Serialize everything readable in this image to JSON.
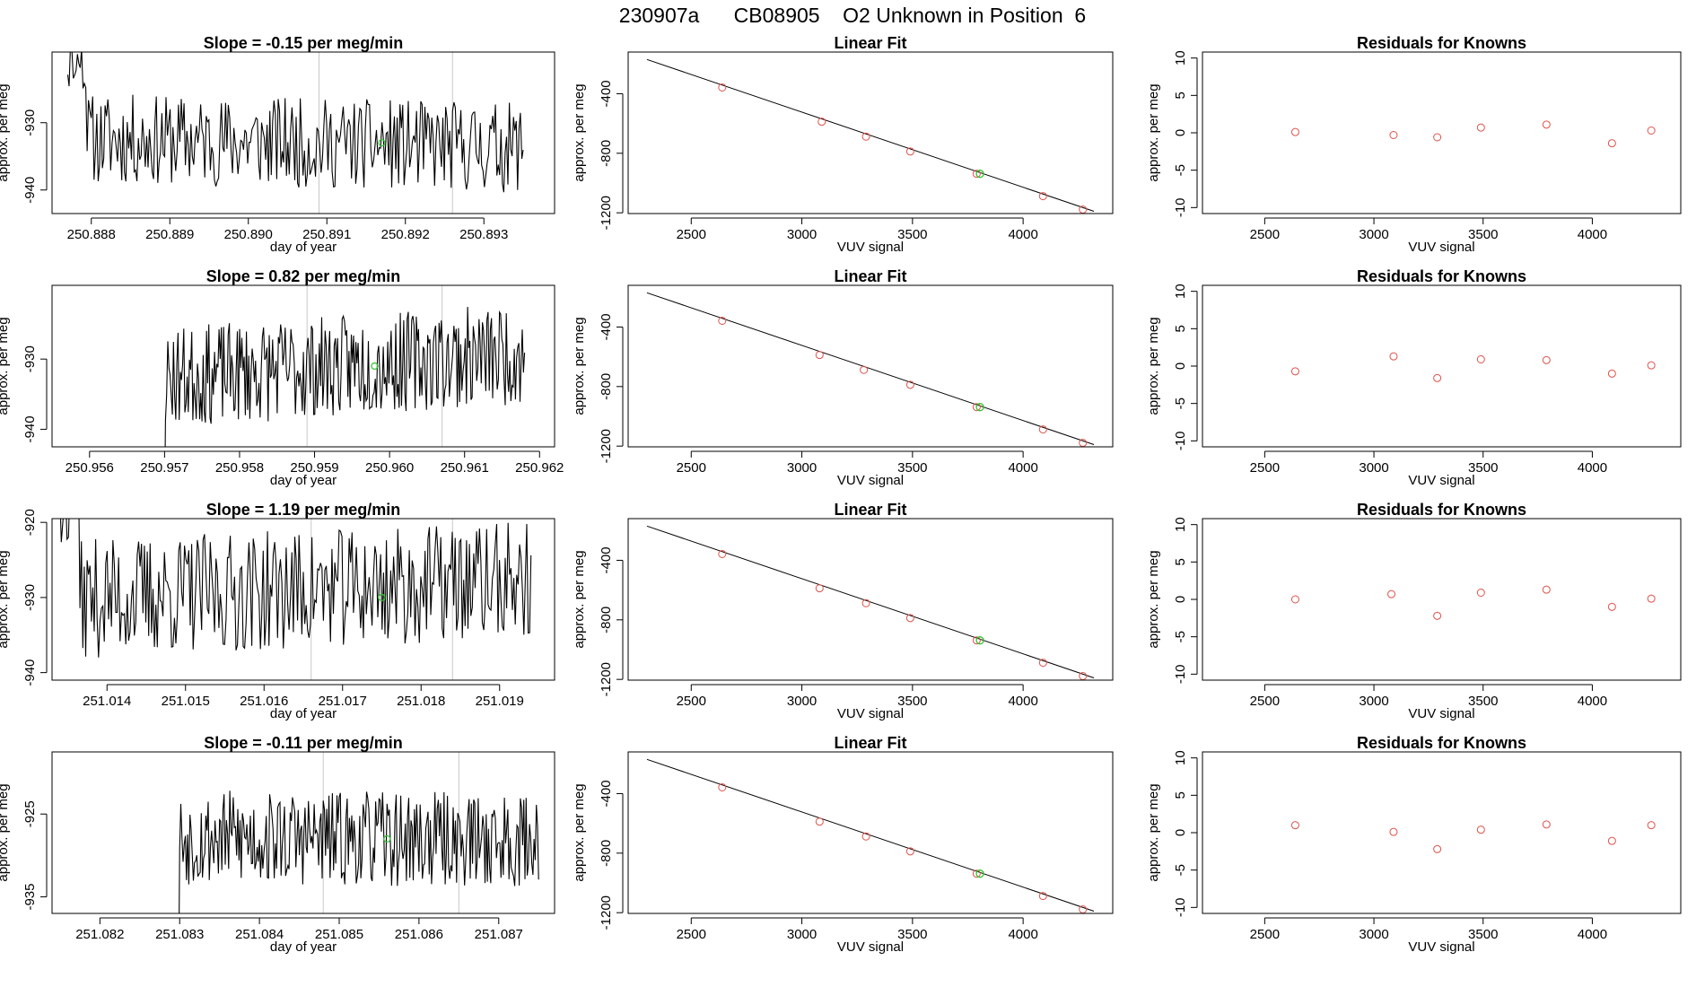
{
  "page_title": "230907a      CB08905    O2 Unknown in Position  6",
  "colors": {
    "line": "#000000",
    "known_point": "#e0514a",
    "unknown_point": "#2ec42e",
    "marker_line": "#c8c8c8",
    "frame": "#000000"
  },
  "chart_data": [
    {
      "type": "line",
      "panel": "time-series",
      "row": 1,
      "title": "Slope =  -0.15  per meg/min",
      "xlabel": "day of year",
      "ylabel": "approx. per meg",
      "xlim": [
        250.8875,
        250.8939
      ],
      "ylim": [
        -943.5,
        -919.5
      ],
      "xticks": [
        "250.888",
        "250.889",
        "250.890",
        "250.891",
        "250.892",
        "250.893"
      ],
      "yticks": [
        "-940",
        "-930"
      ],
      "series_start": 250.8877,
      "series_end": 250.8935,
      "mean": -933,
      "noise": 4.2,
      "trend": -0.35,
      "seed": 11,
      "start_level": -921,
      "vertical_markers": [
        250.8909,
        250.8926
      ],
      "unknown_point": {
        "x": 250.8917,
        "y": -933
      }
    },
    {
      "type": "scatter",
      "panel": "linear-fit",
      "row": 1,
      "title": "Linear Fit",
      "xlabel": "VUV signal",
      "ylabel": "approx. per meg",
      "xlim": [
        2215,
        4405
      ],
      "ylim": [
        -1205,
        -120
      ],
      "xticks": [
        "2500",
        "3000",
        "3500",
        "4000"
      ],
      "yticks": [
        "-1200",
        "-800",
        "-400"
      ],
      "fit_line": {
        "x": [
          2300,
          4320
        ],
        "y": [
          -170,
          -1190
        ]
      },
      "knowns": {
        "x": [
          2640,
          3090,
          3290,
          3490,
          3790,
          4090,
          4270
        ],
        "y": [
          -358,
          -588,
          -688,
          -788,
          -938,
          -1088,
          -1178
        ]
      },
      "unknown": {
        "x": 3805,
        "y": -938
      }
    },
    {
      "type": "scatter",
      "panel": "residuals",
      "row": 1,
      "title": "Residuals for Knowns",
      "xlabel": "VUV signal",
      "ylabel": "approx. per meg",
      "xlim": [
        2215,
        4405
      ],
      "ylim": [
        -10.8,
        10.8
      ],
      "xticks": [
        "2500",
        "3000",
        "3500",
        "4000"
      ],
      "yticks": [
        "-10",
        "-5",
        "0",
        "5",
        "10"
      ],
      "points": {
        "x": [
          2640,
          3090,
          3290,
          3490,
          3790,
          4090,
          4270
        ],
        "y": [
          0.1,
          -0.3,
          -0.6,
          0.7,
          1.1,
          -1.4,
          0.3
        ]
      }
    },
    {
      "type": "line",
      "panel": "time-series",
      "row": 2,
      "title": "Slope =  0.82  per meg/min",
      "xlabel": "day of year",
      "ylabel": "approx. per meg",
      "xlim": [
        250.9555,
        250.9622
      ],
      "ylim": [
        -942.5,
        -919.5
      ],
      "xticks": [
        "250.956",
        "250.957",
        "250.958",
        "250.959",
        "250.960",
        "250.961",
        "250.962"
      ],
      "yticks": [
        "-940",
        "-930"
      ],
      "series_start": 250.9568,
      "series_end": 250.9618,
      "mean": -931,
      "noise": 4.5,
      "trend": 0.9,
      "seed": 23,
      "start_level": -952,
      "vertical_markers": [
        250.9589,
        250.9607
      ],
      "unknown_point": {
        "x": 250.9598,
        "y": -931
      }
    },
    {
      "type": "scatter",
      "panel": "linear-fit",
      "row": 2,
      "title": "Linear Fit",
      "xlabel": "VUV signal",
      "ylabel": "approx. per meg",
      "xlim": [
        2215,
        4405
      ],
      "ylim": [
        -1205,
        -120
      ],
      "xticks": [
        "2500",
        "3000",
        "3500",
        "4000"
      ],
      "yticks": [
        "-1200",
        "-800",
        "-400"
      ],
      "fit_line": {
        "x": [
          2300,
          4320
        ],
        "y": [
          -170,
          -1190
        ]
      },
      "knowns": {
        "x": [
          2640,
          3080,
          3280,
          3490,
          3790,
          4090,
          4270
        ],
        "y": [
          -358,
          -588,
          -688,
          -788,
          -938,
          -1088,
          -1178
        ]
      },
      "unknown": {
        "x": 3805,
        "y": -938
      }
    },
    {
      "type": "scatter",
      "panel": "residuals",
      "row": 2,
      "title": "Residuals for Knowns",
      "xlabel": "VUV signal",
      "ylabel": "approx. per meg",
      "xlim": [
        2215,
        4405
      ],
      "ylim": [
        -10.8,
        10.8
      ],
      "xticks": [
        "2500",
        "3000",
        "3500",
        "4000"
      ],
      "yticks": [
        "-10",
        "-5",
        "0",
        "5",
        "10"
      ],
      "points": {
        "x": [
          2640,
          3090,
          3290,
          3490,
          3790,
          4090,
          4270
        ],
        "y": [
          -0.7,
          1.3,
          -1.6,
          0.9,
          0.8,
          -1.0,
          0.1
        ]
      }
    },
    {
      "type": "line",
      "panel": "time-series",
      "row": 3,
      "title": "Slope =  1.19  per meg/min",
      "xlabel": "day of year",
      "ylabel": "approx. per meg",
      "xlim": [
        251.0133,
        251.0197
      ],
      "ylim": [
        -941,
        -919.5
      ],
      "xticks": [
        "251.014",
        "251.015",
        "251.016",
        "251.017",
        "251.018",
        "251.019"
      ],
      "yticks": [
        "-940",
        "-930",
        "-920"
      ],
      "series_start": 251.0134,
      "series_end": 251.0194,
      "mean": -929,
      "noise": 5.0,
      "trend": 0.6,
      "seed": 37,
      "start_level": -918,
      "vertical_markers": [
        251.0166,
        251.0184
      ],
      "unknown_point": {
        "x": 251.0175,
        "y": -930
      }
    },
    {
      "type": "scatter",
      "panel": "linear-fit",
      "row": 3,
      "title": "Linear Fit",
      "xlabel": "VUV signal",
      "ylabel": "approx. per meg",
      "xlim": [
        2215,
        4405
      ],
      "ylim": [
        -1205,
        -120
      ],
      "xticks": [
        "2500",
        "3000",
        "3500",
        "4000"
      ],
      "yticks": [
        "-1200",
        "-800",
        "-400"
      ],
      "fit_line": {
        "x": [
          2300,
          4320
        ],
        "y": [
          -170,
          -1190
        ]
      },
      "knowns": {
        "x": [
          2640,
          3080,
          3290,
          3490,
          3790,
          4090,
          4270
        ],
        "y": [
          -358,
          -588,
          -688,
          -788,
          -938,
          -1088,
          -1178
        ]
      },
      "unknown": {
        "x": 3805,
        "y": -938
      }
    },
    {
      "type": "scatter",
      "panel": "residuals",
      "row": 3,
      "title": "Residuals for Knowns",
      "xlabel": "VUV signal",
      "ylabel": "approx. per meg",
      "xlim": [
        2215,
        4405
      ],
      "ylim": [
        -10.8,
        10.8
      ],
      "xticks": [
        "2500",
        "3000",
        "3500",
        "4000"
      ],
      "yticks": [
        "-10",
        "-5",
        "0",
        "5",
        "10"
      ],
      "points": {
        "x": [
          2640,
          3080,
          3290,
          3490,
          3790,
          4090,
          4270
        ],
        "y": [
          0.0,
          0.7,
          -2.2,
          0.9,
          1.3,
          -1.0,
          0.1
        ]
      }
    },
    {
      "type": "line",
      "panel": "time-series",
      "row": 4,
      "title": "Slope =  -0.11  per meg/min",
      "xlabel": "day of year",
      "ylabel": "approx. per meg",
      "xlim": [
        251.0814,
        251.0877
      ],
      "ylim": [
        -937,
        -917.5
      ],
      "xticks": [
        "251.082",
        "251.083",
        "251.084",
        "251.085",
        "251.086",
        "251.087"
      ],
      "yticks": [
        "-935",
        "-925"
      ],
      "series_start": 251.0828,
      "series_end": 251.0875,
      "mean": -928,
      "noise": 3.6,
      "trend": -0.1,
      "seed": 53,
      "start_level": -945,
      "vertical_markers": [
        251.0848,
        251.0865
      ],
      "unknown_point": {
        "x": 251.0856,
        "y": -928
      }
    },
    {
      "type": "scatter",
      "panel": "linear-fit",
      "row": 4,
      "title": "Linear Fit",
      "xlabel": "VUV signal",
      "ylabel": "approx. per meg",
      "xlim": [
        2215,
        4405
      ],
      "ylim": [
        -1205,
        -120
      ],
      "xticks": [
        "2500",
        "3000",
        "3500",
        "4000"
      ],
      "yticks": [
        "-1200",
        "-800",
        "-400"
      ],
      "fit_line": {
        "x": [
          2300,
          4320
        ],
        "y": [
          -170,
          -1190
        ]
      },
      "knowns": {
        "x": [
          2640,
          3080,
          3290,
          3490,
          3790,
          4090,
          4270
        ],
        "y": [
          -358,
          -588,
          -688,
          -788,
          -938,
          -1088,
          -1178
        ]
      },
      "unknown": {
        "x": 3805,
        "y": -938
      }
    },
    {
      "type": "scatter",
      "panel": "residuals",
      "row": 4,
      "title": "Residuals for Knowns",
      "xlabel": "VUV signal",
      "ylabel": "approx. per meg",
      "xlim": [
        2215,
        4405
      ],
      "ylim": [
        -10.8,
        10.8
      ],
      "xticks": [
        "2500",
        "3000",
        "3500",
        "4000"
      ],
      "yticks": [
        "-10",
        "-5",
        "0",
        "5",
        "10"
      ],
      "points": {
        "x": [
          2640,
          3090,
          3290,
          3490,
          3790,
          4090,
          4270
        ],
        "y": [
          1.0,
          0.1,
          -2.2,
          0.4,
          1.1,
          -1.1,
          1.0
        ]
      }
    }
  ]
}
